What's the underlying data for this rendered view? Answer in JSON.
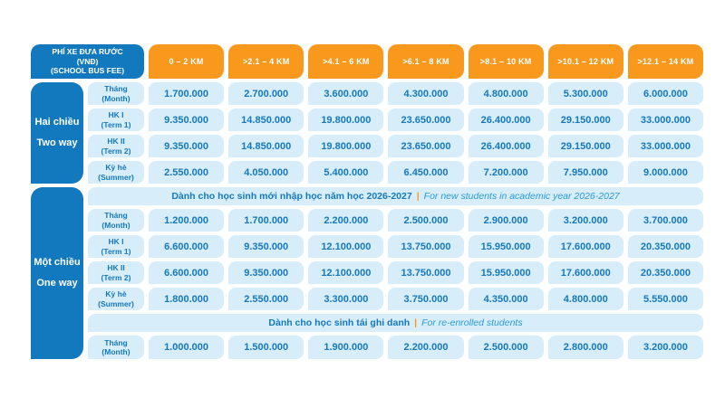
{
  "colors": {
    "brand_blue": "#1379BF",
    "orange": "#F8991D",
    "cell_light_blue": "#D7EEFA",
    "value_text_blue": "#1578BE",
    "italic_text_blue": "#2B99D8"
  },
  "corner_header": {
    "line1": "PHÍ XE ĐƯA RƯỚC",
    "line2": "(VNĐ)",
    "line3": "(SCHOOL BUS FEE)"
  },
  "columns": [
    "0 – 2 KM",
    ">2.1 – 4 KM",
    ">4.1 – 6 KM",
    ">6.1 – 8 KM",
    ">8.1 – 10 KM",
    ">10.1 – 12 KM",
    ">12.1 – 14 KM"
  ],
  "separator": "|",
  "sections": [
    {
      "group": {
        "vi": "Hai chiều",
        "en": "Two way"
      },
      "rows": [
        {
          "label": {
            "vi": "Tháng",
            "en": "(Month)"
          },
          "values": [
            "1.700.000",
            "2.700.000",
            "3.600.000",
            "4.300.000",
            "4.800.000",
            "5.300.000",
            "6.000.000"
          ]
        },
        {
          "label": {
            "vi": "HK I",
            "en": "(Term 1)"
          },
          "values": [
            "9.350.000",
            "14.850.000",
            "19.800.000",
            "23.650.000",
            "26.400.000",
            "29.150.000",
            "33.000.000"
          ]
        },
        {
          "label": {
            "vi": "HK II",
            "en": "(Term 2)"
          },
          "values": [
            "9.350.000",
            "14.850.000",
            "19.800.000",
            "23.650.000",
            "26.400.000",
            "29.150.000",
            "33.000.000"
          ]
        },
        {
          "label": {
            "vi": "Kỳ hè",
            "en": "(Summer)"
          },
          "values": [
            "2.550.000",
            "4.050.000",
            "5.400.000",
            "6.450.000",
            "7.200.000",
            "7.950.000",
            "9.000.000"
          ]
        }
      ]
    },
    {
      "group": {
        "vi": "Một chiều",
        "en": "One way"
      },
      "banner_new_students": {
        "vi": "Dành cho học sinh mới nhập học năm học 2026-2027",
        "en": "For new students in academic year 2026-2027"
      },
      "rows": [
        {
          "label": {
            "vi": "Tháng",
            "en": "(Month)"
          },
          "values": [
            "1.200.000",
            "1.700.000",
            "2.200.000",
            "2.500.000",
            "2.900.000",
            "3.200.000",
            "3.700.000"
          ]
        },
        {
          "label": {
            "vi": "HK I",
            "en": "(Term 1)"
          },
          "values": [
            "6.600.000",
            "9.350.000",
            "12.100.000",
            "13.750.000",
            "15.950.000",
            "17.600.000",
            "20.350.000"
          ]
        },
        {
          "label": {
            "vi": "HK II",
            "en": "(Term 2)"
          },
          "values": [
            "6.600.000",
            "9.350.000",
            "12.100.000",
            "13.750.000",
            "15.950.000",
            "17.600.000",
            "20.350.000"
          ]
        },
        {
          "label": {
            "vi": "Kỳ hè",
            "en": "(Summer)"
          },
          "values": [
            "1.800.000",
            "2.550.000",
            "3.300.000",
            "3.750.000",
            "4.350.000",
            "4.800.000",
            "5.550.000"
          ]
        }
      ],
      "banner_reenrolled": {
        "vi": "Dành cho học sinh tái ghi danh",
        "en": "For re-enrolled students"
      },
      "reenrolled_row": {
        "label": {
          "vi": "Tháng",
          "en": "(Month)"
        },
        "values": [
          "1.000.000",
          "1.500.000",
          "1.900.000",
          "2.200.000",
          "2.500.000",
          "2.800.000",
          "3.200.000"
        ]
      }
    }
  ]
}
